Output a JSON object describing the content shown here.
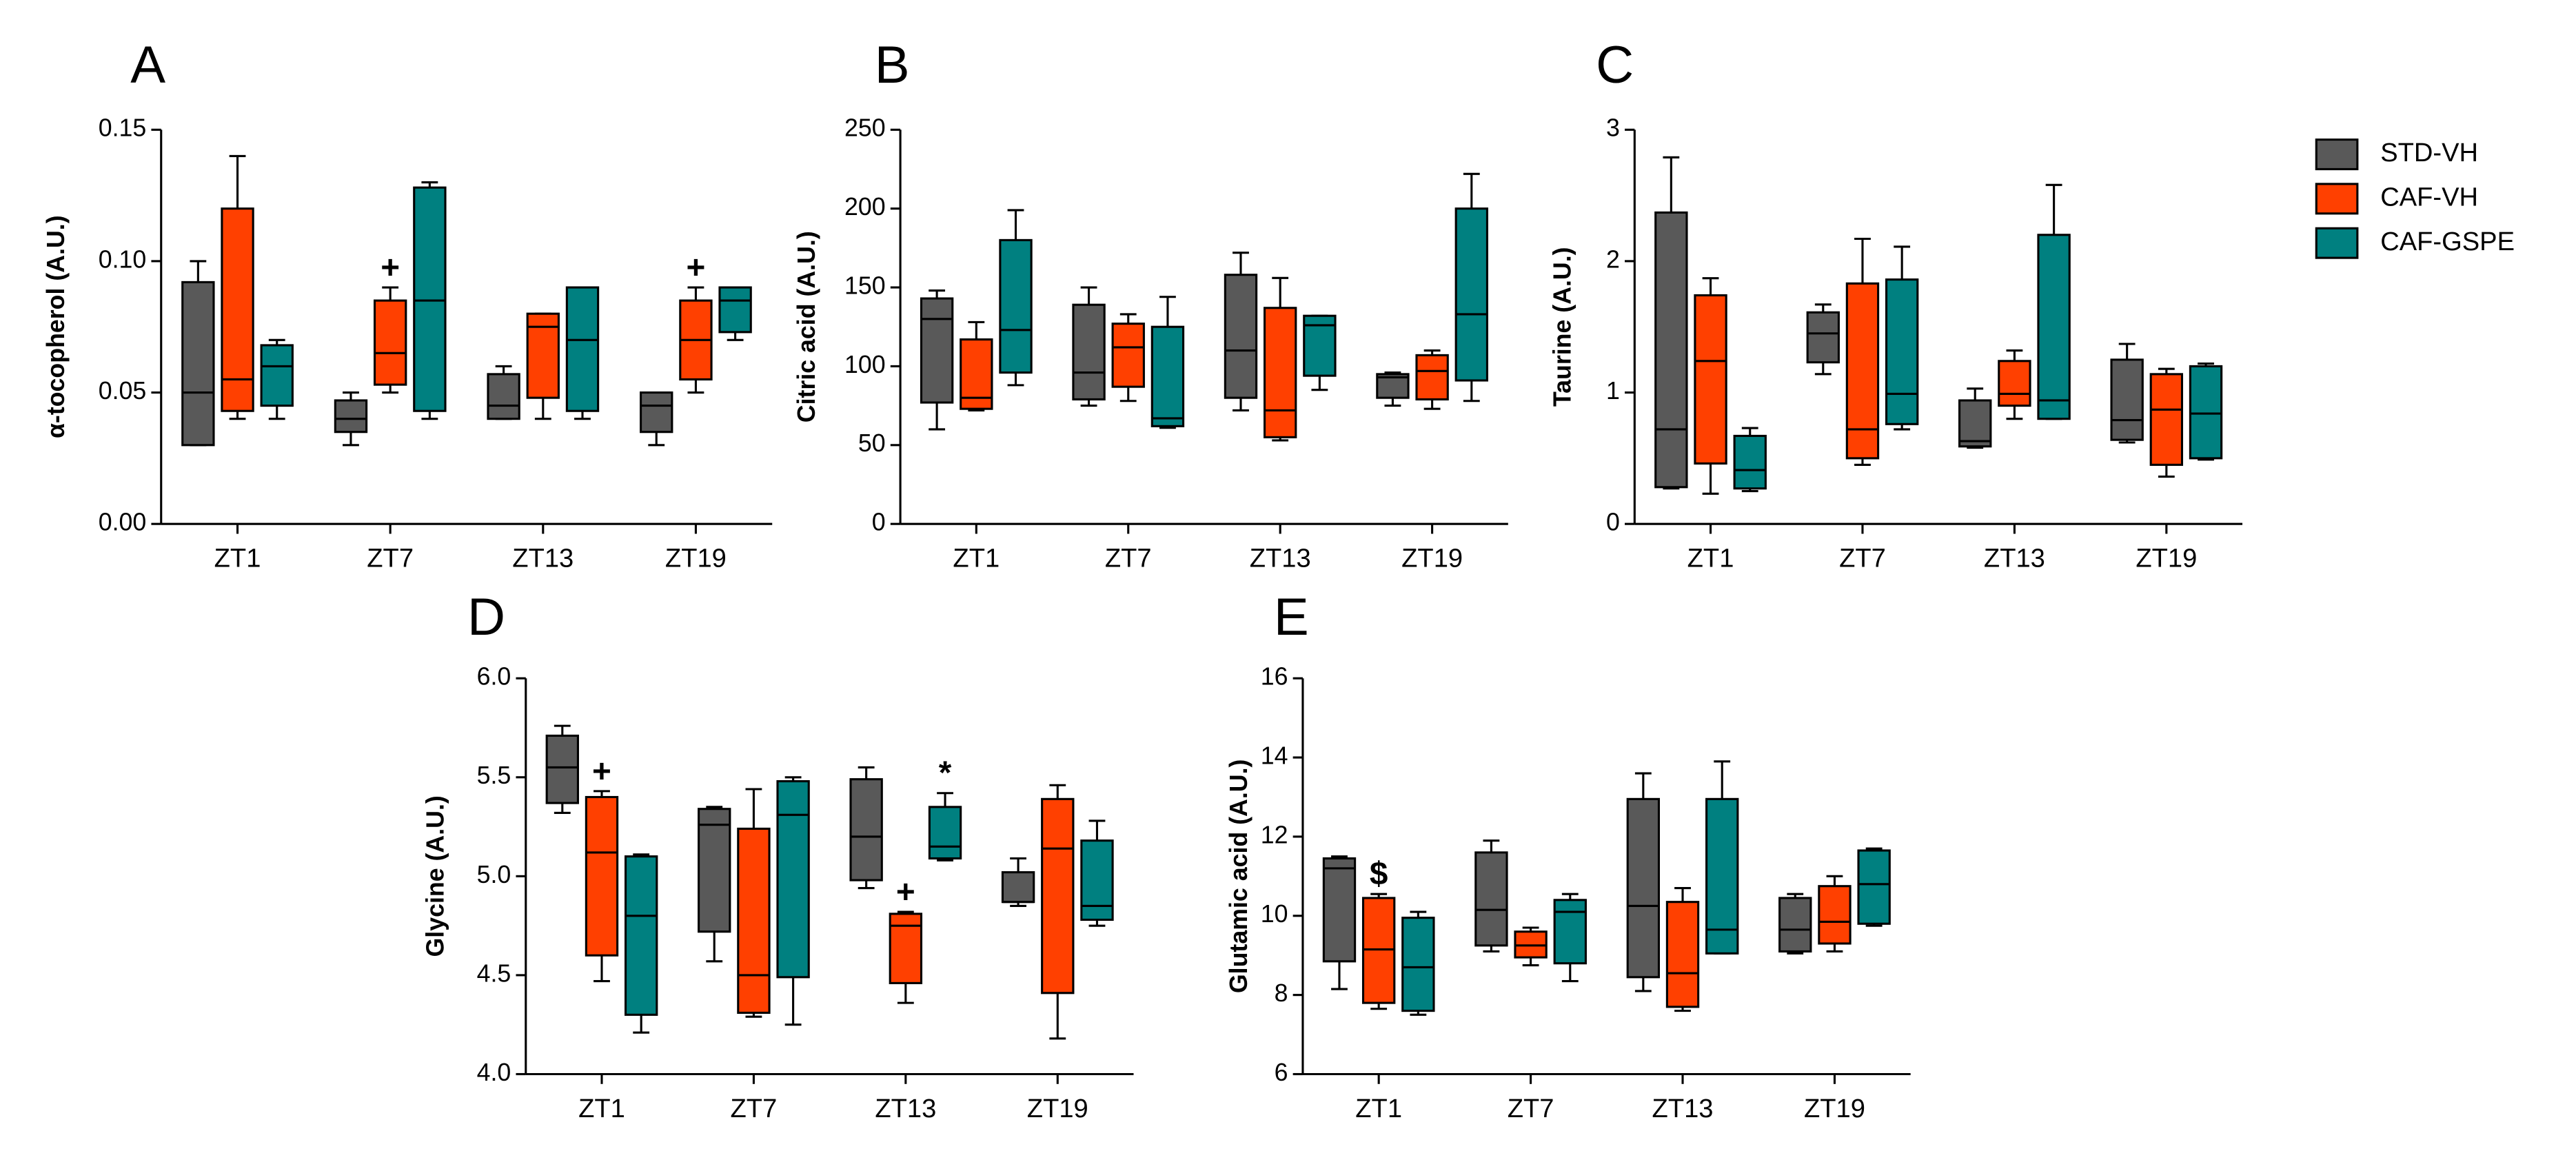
{
  "chart_data": [
    {
      "type": "box",
      "label": "A",
      "ylabel": "α-tocopherol (A.U.)",
      "categories": [
        "ZT1",
        "ZT7",
        "ZT13",
        "ZT19"
      ],
      "ylim": [
        0,
        0.15
      ],
      "yticks": [
        {
          "value": 0,
          "label": "0.00"
        },
        0.05,
        {
          "value": 0.1,
          "label": "0.10"
        },
        0.15
      ],
      "series": [
        {
          "name": "STD-VH",
          "color": "#595959",
          "values": [
            {
              "min": 0.03,
              "q1": 0.03,
              "median": 0.05,
              "q3": 0.092,
              "max": 0.1
            },
            {
              "min": 0.03,
              "q1": 0.035,
              "median": 0.04,
              "q3": 0.047,
              "max": 0.05
            },
            {
              "min": 0.04,
              "q1": 0.04,
              "median": 0.045,
              "q3": 0.057,
              "max": 0.06
            },
            {
              "min": 0.03,
              "q1": 0.035,
              "median": 0.045,
              "q3": 0.05,
              "max": 0.05
            }
          ]
        },
        {
          "name": "CAF-VH",
          "color": "#ff4000",
          "markers": [
            null,
            "+",
            null,
            "+"
          ],
          "values": [
            {
              "min": 0.04,
              "q1": 0.043,
              "median": 0.055,
              "q3": 0.12,
              "max": 0.14
            },
            {
              "min": 0.05,
              "q1": 0.053,
              "median": 0.065,
              "q3": 0.085,
              "max": 0.09
            },
            {
              "min": 0.04,
              "q1": 0.048,
              "median": 0.075,
              "q3": 0.08,
              "max": 0.08
            },
            {
              "min": 0.05,
              "q1": 0.055,
              "median": 0.07,
              "q3": 0.085,
              "max": 0.09
            }
          ]
        },
        {
          "name": "CAF-GSPE",
          "color": "#008080",
          "values": [
            {
              "min": 0.04,
              "q1": 0.045,
              "median": 0.06,
              "q3": 0.068,
              "max": 0.07
            },
            {
              "min": 0.04,
              "q1": 0.043,
              "median": 0.085,
              "q3": 0.128,
              "max": 0.13
            },
            {
              "min": 0.04,
              "q1": 0.043,
              "median": 0.07,
              "q3": 0.09,
              "max": 0.09
            },
            {
              "min": 0.07,
              "q1": 0.073,
              "median": 0.085,
              "q3": 0.09,
              "max": 0.09
            }
          ]
        }
      ]
    },
    {
      "type": "box",
      "label": "B",
      "ylabel": "Citric acid (A.U.)",
      "categories": [
        "ZT1",
        "ZT7",
        "ZT13",
        "ZT19"
      ],
      "ylim": [
        0,
        250
      ],
      "yticks": [
        0,
        50,
        100,
        150,
        200,
        250
      ],
      "series": [
        {
          "name": "STD-VH",
          "color": "#595959",
          "values": [
            {
              "min": 60,
              "q1": 77,
              "median": 130,
              "q3": 143,
              "max": 148
            },
            {
              "min": 75,
              "q1": 79,
              "median": 96,
              "q3": 139,
              "max": 150
            },
            {
              "min": 72,
              "q1": 80,
              "median": 110,
              "q3": 158,
              "max": 172
            },
            {
              "min": 75,
              "q1": 80,
              "median": 93,
              "q3": 95,
              "max": 96
            }
          ]
        },
        {
          "name": "CAF-VH",
          "color": "#ff4000",
          "values": [
            {
              "min": 72,
              "q1": 73,
              "median": 80,
              "q3": 117,
              "max": 128
            },
            {
              "min": 78,
              "q1": 87,
              "median": 112,
              "q3": 127,
              "max": 133
            },
            {
              "min": 53,
              "q1": 55,
              "median": 72,
              "q3": 137,
              "max": 156
            },
            {
              "min": 73,
              "q1": 79,
              "median": 97,
              "q3": 107,
              "max": 110
            }
          ]
        },
        {
          "name": "CAF-GSPE",
          "color": "#008080",
          "values": [
            {
              "min": 88,
              "q1": 96,
              "median": 123,
              "q3": 180,
              "max": 199
            },
            {
              "min": 61,
              "q1": 62,
              "median": 67,
              "q3": 125,
              "max": 144
            },
            {
              "min": 85,
              "q1": 94,
              "median": 126,
              "q3": 132,
              "max": 132
            },
            {
              "min": 78,
              "q1": 91,
              "median": 133,
              "q3": 200,
              "max": 222
            }
          ]
        }
      ]
    },
    {
      "type": "box",
      "label": "C",
      "ylabel": "Taurine (A.U.)",
      "categories": [
        "ZT1",
        "ZT7",
        "ZT13",
        "ZT19"
      ],
      "ylim": [
        0,
        3
      ],
      "yticks": [
        0,
        1,
        2,
        3
      ],
      "series": [
        {
          "name": "STD-VH",
          "color": "#595959",
          "values": [
            {
              "min": 0.27,
              "q1": 0.28,
              "median": 0.72,
              "q3": 2.37,
              "max": 2.79
            },
            {
              "min": 1.14,
              "q1": 1.23,
              "median": 1.45,
              "q3": 1.61,
              "max": 1.67
            },
            {
              "min": 0.58,
              "q1": 0.59,
              "median": 0.63,
              "q3": 0.94,
              "max": 1.03
            },
            {
              "min": 0.62,
              "q1": 0.64,
              "median": 0.79,
              "q3": 1.25,
              "max": 1.37
            }
          ]
        },
        {
          "name": "CAF-VH",
          "color": "#ff4000",
          "values": [
            {
              "min": 0.23,
              "q1": 0.46,
              "median": 1.24,
              "q3": 1.74,
              "max": 1.87
            },
            {
              "min": 0.45,
              "q1": 0.5,
              "median": 0.72,
              "q3": 1.83,
              "max": 2.17
            },
            {
              "min": 0.8,
              "q1": 0.9,
              "median": 0.99,
              "q3": 1.24,
              "max": 1.32
            },
            {
              "min": 0.36,
              "q1": 0.45,
              "median": 0.87,
              "q3": 1.14,
              "max": 1.18
            }
          ]
        },
        {
          "name": "CAF-GSPE",
          "color": "#008080",
          "values": [
            {
              "min": 0.25,
              "q1": 0.27,
              "median": 0.41,
              "q3": 0.67,
              "max": 0.73
            },
            {
              "min": 0.72,
              "q1": 0.76,
              "median": 0.99,
              "q3": 1.86,
              "max": 2.11
            },
            {
              "min": 0.8,
              "q1": 0.8,
              "median": 0.94,
              "q3": 2.2,
              "max": 2.58
            },
            {
              "min": 0.49,
              "q1": 0.5,
              "median": 0.84,
              "q3": 1.2,
              "max": 1.22
            }
          ]
        }
      ]
    },
    {
      "type": "box",
      "label": "D",
      "ylabel": "Glycine (A.U.)",
      "categories": [
        "ZT1",
        "ZT7",
        "ZT13",
        "ZT19"
      ],
      "ylim": [
        4,
        6
      ],
      "yticks": [
        {
          "value": 4,
          "label": "4.0"
        },
        4.5,
        {
          "value": 5,
          "label": "5.0"
        },
        5.5,
        {
          "value": 6,
          "label": "6.0"
        }
      ],
      "series": [
        {
          "name": "STD-VH",
          "color": "#595959",
          "values": [
            {
              "min": 5.32,
              "q1": 5.37,
              "median": 5.55,
              "q3": 5.71,
              "max": 5.76
            },
            {
              "min": 4.57,
              "q1": 4.72,
              "median": 5.26,
              "q3": 5.34,
              "max": 5.35
            },
            {
              "min": 4.94,
              "q1": 4.98,
              "median": 5.2,
              "q3": 5.49,
              "max": 5.55
            },
            {
              "min": 4.85,
              "q1": 4.87,
              "median": 4.87,
              "q3": 5.02,
              "max": 5.09
            }
          ]
        },
        {
          "name": "CAF-VH",
          "color": "#ff4000",
          "markers": [
            "+",
            null,
            "+",
            null
          ],
          "values": [
            {
              "min": 4.47,
              "q1": 4.6,
              "median": 5.12,
              "q3": 5.4,
              "max": 5.43
            },
            {
              "min": 4.29,
              "q1": 4.31,
              "median": 4.5,
              "q3": 5.24,
              "max": 5.44
            },
            {
              "min": 4.36,
              "q1": 4.46,
              "median": 4.75,
              "q3": 4.81,
              "max": 4.82
            },
            {
              "min": 4.18,
              "q1": 4.41,
              "median": 5.14,
              "q3": 5.39,
              "max": 5.46
            }
          ]
        },
        {
          "name": "CAF-GSPE",
          "color": "#008080",
          "markers": [
            null,
            null,
            "*",
            null
          ],
          "values": [
            {
              "min": 4.21,
              "q1": 4.3,
              "median": 4.8,
              "q3": 5.1,
              "max": 5.11
            },
            {
              "min": 4.25,
              "q1": 4.49,
              "median": 5.31,
              "q3": 5.48,
              "max": 5.5
            },
            {
              "min": 5.08,
              "q1": 5.09,
              "median": 5.15,
              "q3": 5.35,
              "max": 5.42
            },
            {
              "min": 4.75,
              "q1": 4.78,
              "median": 4.85,
              "q3": 5.18,
              "max": 5.28
            }
          ]
        }
      ]
    },
    {
      "type": "box",
      "label": "E",
      "ylabel": "Glutamic acid (A.U.)",
      "categories": [
        "ZT1",
        "ZT7",
        "ZT13",
        "ZT19"
      ],
      "ylim": [
        6,
        16
      ],
      "yticks": [
        6,
        8,
        10,
        12,
        14,
        16
      ],
      "series": [
        {
          "name": "STD-VH",
          "color": "#595959",
          "values": [
            {
              "min": 8.15,
              "q1": 8.85,
              "median": 11.2,
              "q3": 11.45,
              "max": 11.5
            },
            {
              "min": 9.1,
              "q1": 9.25,
              "median": 10.15,
              "q3": 11.6,
              "max": 11.9
            },
            {
              "min": 8.1,
              "q1": 8.45,
              "median": 10.25,
              "q3": 12.95,
              "max": 13.6
            },
            {
              "min": 9.05,
              "q1": 9.1,
              "median": 9.65,
              "q3": 10.45,
              "max": 10.55
            }
          ]
        },
        {
          "name": "CAF-VH",
          "color": "#ff4000",
          "markers": [
            "$",
            null,
            null,
            null
          ],
          "values": [
            {
              "min": 7.65,
              "q1": 7.8,
              "median": 9.15,
              "q3": 10.45,
              "max": 10.55
            },
            {
              "min": 8.75,
              "q1": 8.95,
              "median": 9.25,
              "q3": 9.6,
              "max": 9.7
            },
            {
              "min": 7.6,
              "q1": 7.7,
              "median": 8.55,
              "q3": 10.35,
              "max": 10.7
            },
            {
              "min": 9.1,
              "q1": 9.3,
              "median": 9.85,
              "q3": 10.75,
              "max": 11.0
            }
          ]
        },
        {
          "name": "CAF-GSPE",
          "color": "#008080",
          "values": [
            {
              "min": 7.5,
              "q1": 7.6,
              "median": 8.7,
              "q3": 9.95,
              "max": 10.1
            },
            {
              "min": 8.35,
              "q1": 8.8,
              "median": 10.1,
              "q3": 10.4,
              "max": 10.55
            },
            {
              "min": 9.05,
              "q1": 9.05,
              "median": 9.65,
              "q3": 12.95,
              "max": 13.9
            },
            {
              "min": 9.75,
              "q1": 9.8,
              "median": 10.8,
              "q3": 11.65,
              "max": 11.7
            }
          ]
        }
      ]
    }
  ]
}
